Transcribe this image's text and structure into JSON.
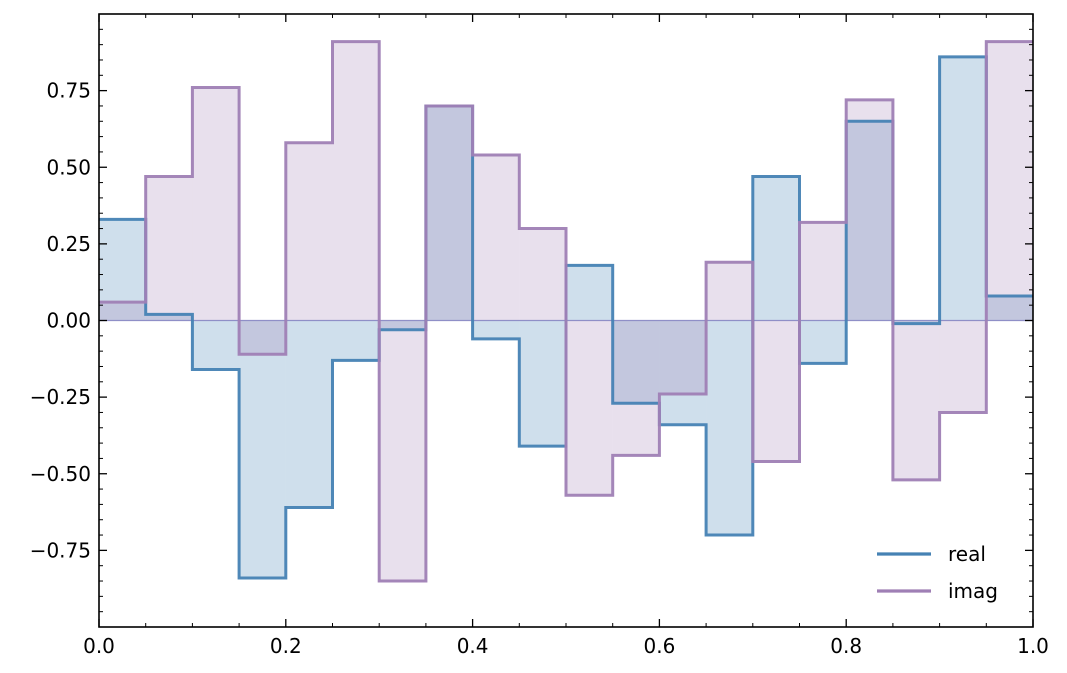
{
  "chart_data": {
    "type": "area",
    "drawstyle": "steps-post",
    "x_edges": [
      0.0,
      0.05,
      0.1,
      0.15,
      0.2,
      0.25,
      0.3,
      0.35,
      0.4,
      0.45,
      0.5,
      0.55,
      0.6,
      0.65,
      0.7,
      0.75,
      0.8,
      0.85,
      0.9,
      0.95,
      1.0
    ],
    "series": [
      {
        "name": "real",
        "color": "#4682b4",
        "fill": "#cddeed",
        "values": [
          0.33,
          0.02,
          -0.16,
          -0.84,
          -0.61,
          -0.13,
          -0.03,
          0.7,
          -0.06,
          -0.41,
          0.18,
          -0.27,
          -0.34,
          -0.7,
          0.47,
          -0.14,
          0.65,
          -0.01,
          0.86,
          0.08
        ]
      },
      {
        "name": "imag",
        "color": "#9f7fb5",
        "fill": "#e7dfec",
        "values": [
          0.06,
          0.47,
          0.76,
          -0.11,
          0.58,
          0.91,
          -0.85,
          0.7,
          0.54,
          0.3,
          -0.57,
          -0.44,
          -0.24,
          0.19,
          -0.46,
          0.32,
          0.72,
          -0.52,
          -0.3,
          0.91
        ]
      }
    ],
    "overlap_fill": "#bfc3de",
    "xlim": [
      0.0,
      1.0
    ],
    "ylim": [
      -1.0,
      1.0
    ],
    "x_ticks": [
      "0.0",
      "0.2",
      "0.4",
      "0.6",
      "0.8",
      "1.0"
    ],
    "y_ticks": [
      "−0.75",
      "−0.50",
      "−0.25",
      "0.00",
      "0.25",
      "0.50",
      "0.75"
    ],
    "xlabel": "",
    "ylabel": "",
    "title": "",
    "grid": false,
    "legend_position": "lower-right"
  }
}
